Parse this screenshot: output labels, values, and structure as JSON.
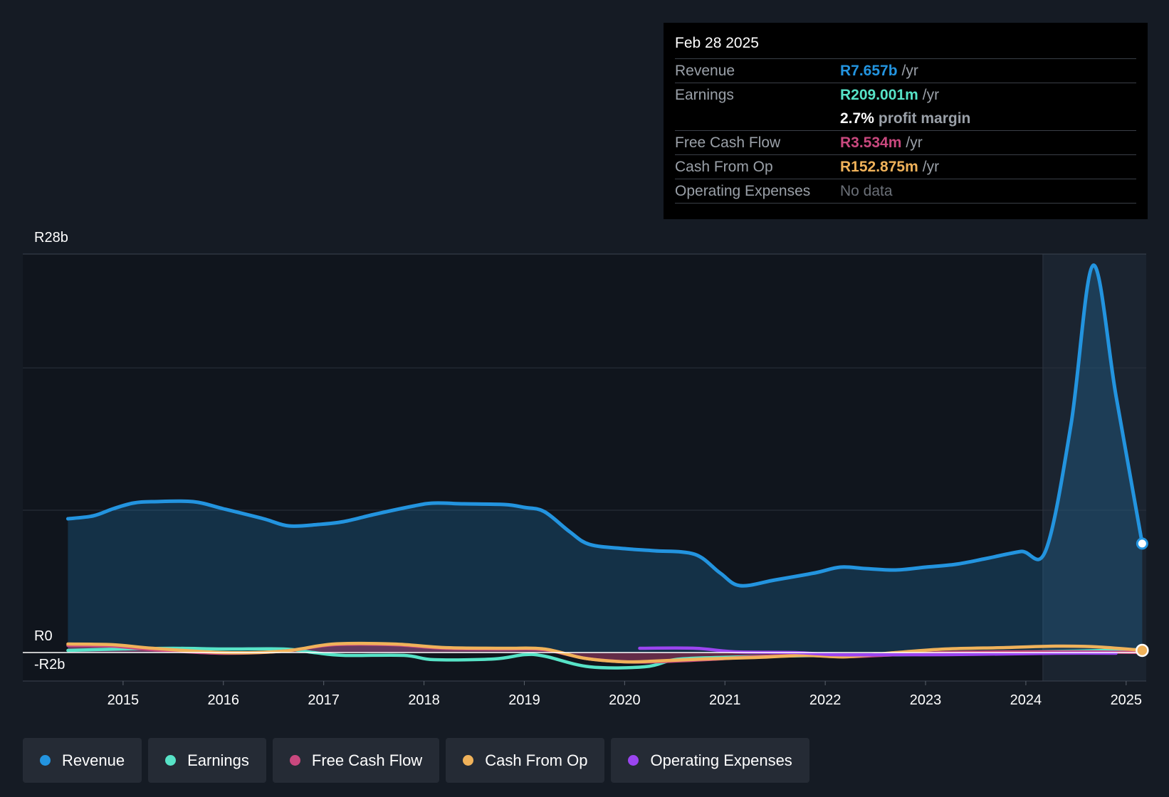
{
  "chart_data": {
    "type": "line",
    "currency_prefix": "R",
    "y_axis": {
      "top_label": "R28b",
      "zero_label": "R0",
      "bottom_label": "-R2b",
      "ylim": [
        -2,
        28
      ],
      "unit": "billion"
    },
    "x_ticks": [
      "2015",
      "2016",
      "2017",
      "2018",
      "2019",
      "2020",
      "2021",
      "2022",
      "2023",
      "2024",
      "2025"
    ],
    "xlim": [
      2014.0,
      2025.2
    ],
    "highlight_start": 2024.17,
    "series": [
      {
        "name": "Revenue",
        "color": "#2394df",
        "fill": true,
        "points": [
          [
            2014.45,
            9.4
          ],
          [
            2014.7,
            9.6
          ],
          [
            2014.9,
            10.1
          ],
          [
            2015.1,
            10.5
          ],
          [
            2015.3,
            10.6
          ],
          [
            2015.7,
            10.6
          ],
          [
            2016.0,
            10.1
          ],
          [
            2016.4,
            9.4
          ],
          [
            2016.65,
            8.9
          ],
          [
            2016.95,
            9.0
          ],
          [
            2017.2,
            9.2
          ],
          [
            2017.5,
            9.7
          ],
          [
            2017.9,
            10.3
          ],
          [
            2018.1,
            10.5
          ],
          [
            2018.4,
            10.45
          ],
          [
            2018.8,
            10.4
          ],
          [
            2019.0,
            10.2
          ],
          [
            2019.2,
            9.9
          ],
          [
            2019.45,
            8.5
          ],
          [
            2019.65,
            7.6
          ],
          [
            2020.0,
            7.3
          ],
          [
            2020.3,
            7.15
          ],
          [
            2020.7,
            6.9
          ],
          [
            2020.95,
            5.6
          ],
          [
            2021.15,
            4.7
          ],
          [
            2021.5,
            5.1
          ],
          [
            2021.9,
            5.6
          ],
          [
            2022.15,
            6.0
          ],
          [
            2022.4,
            5.9
          ],
          [
            2022.7,
            5.8
          ],
          [
            2023.0,
            6.0
          ],
          [
            2023.3,
            6.2
          ],
          [
            2023.6,
            6.6
          ],
          [
            2023.95,
            7.1
          ],
          [
            2024.2,
            7.2
          ],
          [
            2024.45,
            16.0
          ],
          [
            2024.67,
            27.2
          ],
          [
            2024.9,
            18.0
          ],
          [
            2025.16,
            7.657
          ]
        ]
      },
      {
        "name": "Earnings",
        "color": "#57e3c7",
        "fill": false,
        "points": [
          [
            2014.45,
            0.15
          ],
          [
            2015.0,
            0.25
          ],
          [
            2015.5,
            0.3
          ],
          [
            2016.0,
            0.25
          ],
          [
            2016.6,
            0.25
          ],
          [
            2016.9,
            0.0
          ],
          [
            2017.2,
            -0.2
          ],
          [
            2017.8,
            -0.2
          ],
          [
            2018.1,
            -0.5
          ],
          [
            2018.7,
            -0.45
          ],
          [
            2019.0,
            -0.15
          ],
          [
            2019.2,
            -0.25
          ],
          [
            2019.65,
            -1.0
          ],
          [
            2020.2,
            -1.0
          ],
          [
            2020.5,
            -0.5
          ],
          [
            2020.9,
            -0.35
          ],
          [
            2021.5,
            -0.25
          ],
          [
            2022.2,
            -0.2
          ],
          [
            2022.8,
            -0.15
          ],
          [
            2023.5,
            -0.05
          ],
          [
            2024.0,
            0.05
          ],
          [
            2024.5,
            0.1
          ],
          [
            2025.16,
            0.209
          ]
        ]
      },
      {
        "name": "Free Cash Flow",
        "color": "#c9487e",
        "fill": true,
        "points": [
          [
            2014.45,
            0.5
          ],
          [
            2014.9,
            0.45
          ],
          [
            2015.3,
            0.2
          ],
          [
            2016.0,
            -0.05
          ],
          [
            2016.6,
            0.1
          ],
          [
            2017.1,
            0.55
          ],
          [
            2017.7,
            0.55
          ],
          [
            2018.2,
            0.3
          ],
          [
            2018.8,
            0.25
          ],
          [
            2019.2,
            0.2
          ],
          [
            2019.6,
            -0.4
          ],
          [
            2020.0,
            -0.65
          ],
          [
            2020.3,
            -0.65
          ],
          [
            2020.8,
            -0.5
          ],
          [
            2021.3,
            -0.3
          ],
          [
            2021.8,
            -0.2
          ],
          [
            2022.2,
            -0.3
          ],
          [
            2022.7,
            -0.15
          ],
          [
            2023.2,
            0.0
          ],
          [
            2023.8,
            0.05
          ],
          [
            2024.5,
            0.05
          ],
          [
            2025.16,
            0.003534
          ]
        ]
      },
      {
        "name": "Cash From Op",
        "color": "#f0b25a",
        "fill": false,
        "points": [
          [
            2014.45,
            0.6
          ],
          [
            2014.9,
            0.55
          ],
          [
            2015.3,
            0.3
          ],
          [
            2016.0,
            0.0
          ],
          [
            2016.6,
            0.1
          ],
          [
            2017.1,
            0.6
          ],
          [
            2017.7,
            0.6
          ],
          [
            2018.2,
            0.35
          ],
          [
            2018.8,
            0.3
          ],
          [
            2019.2,
            0.25
          ],
          [
            2019.6,
            -0.4
          ],
          [
            2020.0,
            -0.65
          ],
          [
            2020.3,
            -0.6
          ],
          [
            2020.8,
            -0.45
          ],
          [
            2021.3,
            -0.35
          ],
          [
            2021.8,
            -0.2
          ],
          [
            2022.2,
            -0.3
          ],
          [
            2022.7,
            0.0
          ],
          [
            2023.2,
            0.25
          ],
          [
            2023.8,
            0.35
          ],
          [
            2024.3,
            0.45
          ],
          [
            2024.7,
            0.4
          ],
          [
            2025.16,
            0.152875
          ]
        ]
      },
      {
        "name": "Operating Expenses",
        "color": "#9b45f0",
        "fill": false,
        "points": [
          [
            2020.15,
            0.3
          ],
          [
            2020.7,
            0.3
          ],
          [
            2021.1,
            0.05
          ],
          [
            2021.7,
            0.0
          ],
          [
            2022.1,
            -0.15
          ],
          [
            2022.7,
            -0.15
          ],
          [
            2023.2,
            -0.15
          ],
          [
            2023.8,
            -0.1
          ],
          [
            2024.3,
            -0.05
          ],
          [
            2024.9,
            -0.05
          ]
        ]
      }
    ]
  },
  "tooltip": {
    "date": "Feb 28 2025",
    "rows": [
      {
        "label": "Revenue",
        "value": "R7.657b",
        "unit": "/yr",
        "color": "#2394df"
      },
      {
        "label": "Earnings",
        "value": "R209.001m",
        "unit": "/yr",
        "color": "#57e3c7"
      },
      {
        "label": "",
        "value": "2.7%",
        "unit": "profit margin",
        "color": "#ffffff"
      },
      {
        "label": "Free Cash Flow",
        "value": "R3.534m",
        "unit": "/yr",
        "color": "#c9487e"
      },
      {
        "label": "Cash From Op",
        "value": "R152.875m",
        "unit": "/yr",
        "color": "#f0b25a"
      },
      {
        "label": "Operating Expenses",
        "value": "No data",
        "unit": "",
        "color": "#6b7078"
      }
    ]
  },
  "legend": [
    {
      "label": "Revenue",
      "color": "#2394df"
    },
    {
      "label": "Earnings",
      "color": "#57e3c7"
    },
    {
      "label": "Free Cash Flow",
      "color": "#c9487e"
    },
    {
      "label": "Cash From Op",
      "color": "#f0b25a"
    },
    {
      "label": "Operating Expenses",
      "color": "#9b45f0"
    }
  ]
}
